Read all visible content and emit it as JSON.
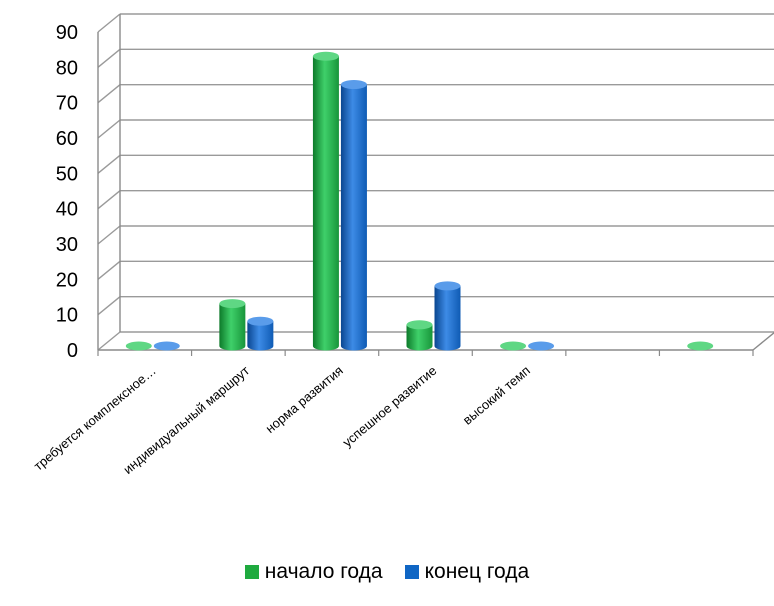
{
  "chart_data": {
    "type": "bar",
    "style": "3d-cylinder",
    "categories": [
      "требуется комплексное…",
      "индивидуальный маршрут",
      "норма развития",
      "успешное развитие",
      "высокий темп",
      "",
      ""
    ],
    "series": [
      {
        "name": "начало года",
        "color": "#1faa3f",
        "values": [
          0,
          12,
          82,
          6,
          0,
          null,
          0
        ]
      },
      {
        "name": "конец года",
        "color": "#1066c4",
        "values": [
          0,
          7,
          74,
          17,
          0,
          null,
          null
        ]
      }
    ],
    "y_ticks": [
      "0",
      "10",
      "20",
      "30",
      "40",
      "50",
      "60",
      "70",
      "80",
      "90"
    ],
    "ylim": [
      0,
      90
    ],
    "grid": true,
    "legend_position": "bottom"
  }
}
